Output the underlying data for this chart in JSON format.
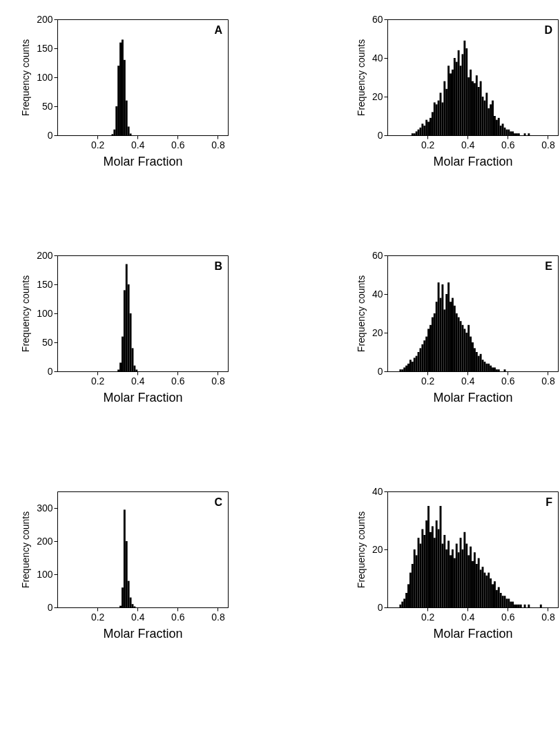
{
  "chart_data": [
    {
      "type": "histogram",
      "xlabel": "Molar Fraction",
      "ylabel": "Frequency counts",
      "annotations": [
        "A"
      ],
      "xlim": [
        0,
        0.85
      ],
      "xticks": [
        0.2,
        0.4,
        0.6,
        0.8
      ],
      "ylim": [
        0,
        200
      ],
      "yticks": [
        0,
        50,
        100,
        150,
        200
      ],
      "grid": false,
      "color": "#000000",
      "bins": [
        0.27,
        0.28,
        0.29,
        0.3,
        0.31,
        0.32,
        0.33,
        0.34,
        0.35,
        0.36,
        0.37
      ],
      "values": [
        2,
        10,
        50,
        120,
        160,
        165,
        130,
        60,
        15,
        3
      ]
    },
    {
      "type": "histogram",
      "xlabel": "Molar Fraction",
      "ylabel": "Frequency counts",
      "annotations": [
        "D"
      ],
      "xlim": [
        0,
        0.85
      ],
      "xticks": [
        0.2,
        0.4,
        0.6,
        0.8
      ],
      "ylim": [
        0,
        60
      ],
      "yticks": [
        0,
        20,
        40,
        60
      ],
      "grid": false,
      "color": "#000000",
      "bins": [
        0.12,
        0.13,
        0.14,
        0.15,
        0.16,
        0.17,
        0.18,
        0.19,
        0.2,
        0.21,
        0.22,
        0.23,
        0.24,
        0.25,
        0.26,
        0.27,
        0.28,
        0.29,
        0.3,
        0.31,
        0.32,
        0.33,
        0.34,
        0.35,
        0.36,
        0.37,
        0.38,
        0.39,
        0.4,
        0.41,
        0.42,
        0.43,
        0.44,
        0.45,
        0.46,
        0.47,
        0.48,
        0.49,
        0.5,
        0.51,
        0.52,
        0.53,
        0.54,
        0.55,
        0.56,
        0.57,
        0.58,
        0.59,
        0.6,
        0.61,
        0.62,
        0.63,
        0.64,
        0.65,
        0.66,
        0.67,
        0.68,
        0.69,
        0.7,
        0.71,
        0.72
      ],
      "values": [
        1,
        1,
        2,
        3,
        4,
        6,
        5,
        8,
        7,
        9,
        12,
        17,
        16,
        18,
        22,
        17,
        28,
        24,
        36,
        32,
        34,
        40,
        38,
        44,
        36,
        42,
        49,
        45,
        30,
        34,
        28,
        27,
        31,
        25,
        28,
        20,
        18,
        22,
        14,
        16,
        18,
        10,
        8,
        9,
        5,
        6,
        4,
        3,
        3,
        2,
        2,
        1,
        1,
        1,
        0,
        0,
        1,
        0,
        1,
        0
      ]
    },
    {
      "type": "histogram",
      "xlabel": "Molar Fraction",
      "ylabel": "Frequency counts",
      "annotations": [
        "B"
      ],
      "xlim": [
        0,
        0.85
      ],
      "xticks": [
        0.2,
        0.4,
        0.6,
        0.8
      ],
      "ylim": [
        0,
        200
      ],
      "yticks": [
        0,
        50,
        100,
        150,
        200
      ],
      "grid": false,
      "color": "#000000",
      "bins": [
        0.3,
        0.31,
        0.32,
        0.33,
        0.34,
        0.35,
        0.36,
        0.37,
        0.38,
        0.39,
        0.4
      ],
      "values": [
        3,
        15,
        60,
        140,
        185,
        150,
        100,
        40,
        10,
        3
      ]
    },
    {
      "type": "histogram",
      "xlabel": "Molar Fraction",
      "ylabel": "Frequency counts",
      "annotations": [
        "E"
      ],
      "xlim": [
        0,
        0.85
      ],
      "xticks": [
        0.2,
        0.4,
        0.6,
        0.8
      ],
      "ylim": [
        0,
        60
      ],
      "yticks": [
        0,
        20,
        40,
        60
      ],
      "grid": false,
      "color": "#000000",
      "bins": [
        0.06,
        0.07,
        0.08,
        0.09,
        0.1,
        0.11,
        0.12,
        0.13,
        0.14,
        0.15,
        0.16,
        0.17,
        0.18,
        0.19,
        0.2,
        0.21,
        0.22,
        0.23,
        0.24,
        0.25,
        0.26,
        0.27,
        0.28,
        0.29,
        0.3,
        0.31,
        0.32,
        0.33,
        0.34,
        0.35,
        0.36,
        0.37,
        0.38,
        0.39,
        0.4,
        0.41,
        0.42,
        0.43,
        0.44,
        0.45,
        0.46,
        0.47,
        0.48,
        0.49,
        0.5,
        0.51,
        0.52,
        0.53,
        0.54,
        0.55,
        0.56,
        0.57,
        0.58,
        0.59,
        0.6
      ],
      "values": [
        1,
        1,
        2,
        3,
        4,
        6,
        5,
        7,
        8,
        10,
        12,
        14,
        16,
        18,
        22,
        24,
        28,
        30,
        36,
        46,
        38,
        45,
        32,
        40,
        46,
        36,
        38,
        34,
        30,
        28,
        26,
        24,
        22,
        20,
        24,
        18,
        15,
        12,
        10,
        8,
        9,
        6,
        5,
        4,
        4,
        3,
        2,
        2,
        1,
        1,
        0,
        0,
        1,
        0
      ]
    },
    {
      "type": "histogram",
      "xlabel": "Molar Fraction",
      "ylabel": "Frequency counts",
      "annotations": [
        "C"
      ],
      "xlim": [
        0,
        0.85
      ],
      "xticks": [
        0.2,
        0.4,
        0.6,
        0.8
      ],
      "ylim": [
        0,
        350
      ],
      "yticks": [
        0,
        100,
        200,
        300
      ],
      "grid": false,
      "color": "#000000",
      "bins": [
        0.31,
        0.32,
        0.33,
        0.34,
        0.35,
        0.36,
        0.37,
        0.38,
        0.39
      ],
      "values": [
        5,
        60,
        295,
        200,
        80,
        30,
        10,
        3
      ]
    },
    {
      "type": "histogram",
      "xlabel": "Molar Fraction",
      "ylabel": "Frequency counts",
      "annotations": [
        "F"
      ],
      "xlim": [
        0,
        0.85
      ],
      "xticks": [
        0.2,
        0.4,
        0.6,
        0.8
      ],
      "ylim": [
        0,
        40
      ],
      "yticks": [
        0,
        20,
        40
      ],
      "grid": false,
      "color": "#000000",
      "bins": [
        0.06,
        0.07,
        0.08,
        0.09,
        0.1,
        0.11,
        0.12,
        0.13,
        0.14,
        0.15,
        0.16,
        0.17,
        0.18,
        0.19,
        0.2,
        0.21,
        0.22,
        0.23,
        0.24,
        0.25,
        0.26,
        0.27,
        0.28,
        0.29,
        0.3,
        0.31,
        0.32,
        0.33,
        0.34,
        0.35,
        0.36,
        0.37,
        0.38,
        0.39,
        0.4,
        0.41,
        0.42,
        0.43,
        0.44,
        0.45,
        0.46,
        0.47,
        0.48,
        0.49,
        0.5,
        0.51,
        0.52,
        0.53,
        0.54,
        0.55,
        0.56,
        0.57,
        0.58,
        0.59,
        0.6,
        0.61,
        0.62,
        0.63,
        0.64,
        0.65,
        0.66,
        0.67,
        0.68,
        0.69,
        0.7,
        0.71,
        0.72,
        0.73,
        0.74,
        0.75,
        0.76,
        0.77,
        0.78
      ],
      "values": [
        1,
        2,
        3,
        5,
        8,
        12,
        15,
        20,
        18,
        24,
        22,
        27,
        25,
        30,
        35,
        26,
        28,
        24,
        30,
        27,
        35,
        22,
        25,
        20,
        23,
        18,
        20,
        17,
        22,
        19,
        24,
        20,
        26,
        22,
        18,
        21,
        16,
        19,
        15,
        17,
        13,
        14,
        12,
        11,
        12,
        10,
        8,
        9,
        6,
        7,
        5,
        4,
        4,
        3,
        3,
        2,
        2,
        1,
        1,
        1,
        1,
        0,
        1,
        0,
        1,
        0,
        0,
        0,
        0,
        0,
        1,
        0
      ]
    }
  ]
}
